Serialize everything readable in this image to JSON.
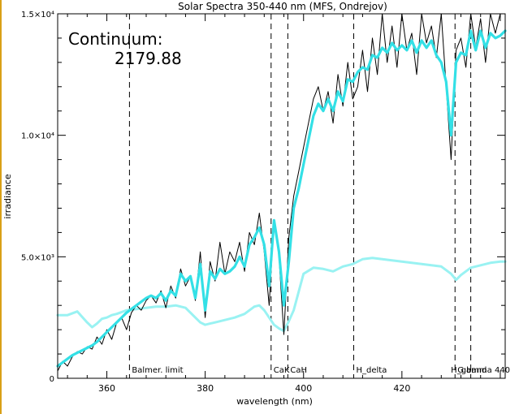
{
  "chart_data": {
    "type": "line",
    "title": "Solar Spectra 350-440 nm (MFS, Ondrejov)",
    "xlabel": "wavelength (nm)",
    "ylabel": "irradiance",
    "xlim": [
      350,
      441
    ],
    "ylim": [
      0,
      15000
    ],
    "x_ticks": [
      360,
      380,
      400,
      420,
      440
    ],
    "x_tick_labels": [
      "360",
      "380",
      "400",
      "420",
      ""
    ],
    "y_ticks": [
      0,
      5000,
      10000,
      15000
    ],
    "y_tick_labels": [
      "0",
      "5.0×10³",
      "1.0×10⁴",
      "1.5×10⁴"
    ],
    "grid": false,
    "legend": "none",
    "annotation": {
      "label": "Continuum:",
      "value": "2179.88"
    },
    "lines": [
      {
        "label": "Balmer. limit",
        "x": 364.6
      },
      {
        "label": "CaK",
        "x": 393.4
      },
      {
        "label": "CaH",
        "x": 396.8
      },
      {
        "label": "H_delta",
        "x": 410.2
      },
      {
        "label": "G band",
        "x": 430.8
      },
      {
        "label": "H_gamma 440",
        "x": 434.0
      }
    ],
    "series": [
      {
        "style": "raw",
        "color": "#000000",
        "x": [
          350,
          351,
          352,
          353,
          354,
          355,
          356,
          357,
          358,
          359,
          360,
          361,
          362,
          363,
          364,
          365,
          366,
          367,
          368,
          369,
          370,
          371,
          372,
          373,
          374,
          375,
          376,
          377,
          378,
          379,
          380,
          381,
          382,
          383,
          384,
          385,
          386,
          387,
          388,
          389,
          390,
          391,
          392,
          393,
          394,
          395,
          396,
          397,
          398,
          399,
          400,
          401,
          402,
          403,
          404,
          405,
          406,
          407,
          408,
          409,
          410,
          411,
          412,
          413,
          414,
          415,
          416,
          417,
          418,
          419,
          420,
          421,
          422,
          423,
          424,
          425,
          426,
          427,
          428,
          429,
          430,
          431,
          432,
          433,
          434,
          435,
          436,
          437,
          438,
          439,
          440,
          441
        ],
        "y": [
          300,
          700,
          500,
          900,
          1100,
          1000,
          1300,
          1200,
          1700,
          1400,
          2000,
          1600,
          2300,
          2500,
          2000,
          2700,
          3000,
          2800,
          3200,
          3400,
          3100,
          3600,
          2900,
          3800,
          3300,
          4500,
          3800,
          4200,
          3200,
          5200,
          2500,
          4800,
          4000,
          5600,
          4300,
          5200,
          4800,
          5600,
          4400,
          6000,
          5500,
          6800,
          5200,
          3000,
          6500,
          5000,
          1800,
          5800,
          7500,
          8500,
          9500,
          10500,
          11500,
          12000,
          11000,
          11800,
          10500,
          12500,
          11200,
          13000,
          11500,
          12000,
          13500,
          11800,
          14000,
          12500,
          15000,
          13000,
          14500,
          12800,
          15000,
          13500,
          14200,
          12500,
          15000,
          13800,
          14500,
          13200,
          15000,
          12000,
          9000,
          13500,
          14000,
          12800,
          15000,
          13600,
          14800,
          13000,
          15000,
          14200,
          15000,
          15000
        ]
      },
      {
        "style": "smoothed",
        "color": "#33e0e6",
        "x": [
          350,
          351,
          352,
          353,
          354,
          355,
          356,
          357,
          358,
          359,
          360,
          361,
          362,
          363,
          364,
          365,
          366,
          367,
          368,
          369,
          370,
          371,
          372,
          373,
          374,
          375,
          376,
          377,
          378,
          379,
          380,
          381,
          382,
          383,
          384,
          385,
          386,
          387,
          388,
          389,
          390,
          391,
          392,
          393,
          394,
          395,
          396,
          397,
          398,
          399,
          400,
          401,
          402,
          403,
          404,
          405,
          406,
          407,
          408,
          409,
          410,
          411,
          412,
          413,
          414,
          415,
          416,
          417,
          418,
          419,
          420,
          421,
          422,
          423,
          424,
          425,
          426,
          427,
          428,
          429,
          430,
          431,
          432,
          433,
          434,
          435,
          436,
          437,
          438,
          439,
          440,
          441
        ],
        "y": [
          500,
          650,
          800,
          950,
          1050,
          1150,
          1250,
          1350,
          1500,
          1700,
          1900,
          2100,
          2300,
          2500,
          2700,
          2850,
          3000,
          3150,
          3300,
          3400,
          3300,
          3500,
          3200,
          3600,
          3400,
          4300,
          4000,
          4200,
          3300,
          4700,
          2800,
          4400,
          4100,
          4500,
          4300,
          4400,
          4600,
          5000,
          4600,
          5500,
          5800,
          6200,
          5500,
          3800,
          6500,
          5200,
          3000,
          4800,
          7000,
          7800,
          8800,
          9800,
          10800,
          11300,
          11000,
          11500,
          11000,
          11800,
          11400,
          12300,
          12200,
          12600,
          12800,
          12700,
          13300,
          13200,
          13600,
          13400,
          13800,
          13500,
          13700,
          13500,
          13900,
          13400,
          13900,
          13600,
          13900,
          13300,
          13000,
          12200,
          10000,
          13000,
          13400,
          13300,
          14300,
          13500,
          14300,
          13600,
          14200,
          14000,
          14100,
          14300
        ]
      },
      {
        "style": "continuum",
        "color": "#99f2f2",
        "x": [
          350,
          352,
          354,
          356,
          357,
          358,
          359,
          360,
          361,
          362,
          364,
          366,
          368,
          370,
          372,
          374,
          376,
          378,
          379,
          380,
          381,
          382,
          384,
          386,
          388,
          390,
          391,
          392,
          393,
          394,
          395,
          396,
          397,
          398,
          400,
          402,
          404,
          406,
          408,
          410,
          412,
          414,
          416,
          418,
          420,
          422,
          424,
          426,
          428,
          430,
          431,
          432,
          434,
          436,
          438,
          440,
          441
        ],
        "y": [
          2600,
          2600,
          2750,
          2300,
          2100,
          2250,
          2450,
          2500,
          2600,
          2650,
          2800,
          2850,
          2900,
          2950,
          2950,
          3000,
          2900,
          2500,
          2300,
          2200,
          2250,
          2300,
          2400,
          2500,
          2650,
          2950,
          3000,
          2800,
          2500,
          2200,
          2050,
          1950,
          2350,
          2800,
          4300,
          4550,
          4500,
          4400,
          4600,
          4700,
          4900,
          4950,
          4900,
          4850,
          4800,
          4750,
          4700,
          4650,
          4600,
          4300,
          4050,
          4250,
          4550,
          4650,
          4750,
          4800,
          4800
        ]
      }
    ]
  }
}
